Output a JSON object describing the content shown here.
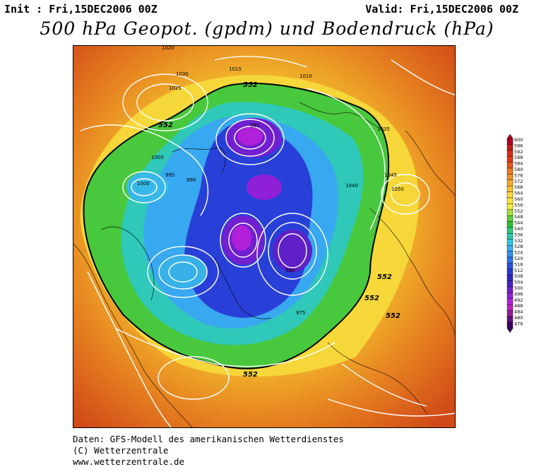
{
  "header": {
    "init": "Init : Fri,15DEC2006 00Z",
    "valid": "Valid: Fri,15DEC2006 00Z",
    "title": "500 hPa Geopot. (gpdm) und Bodendruck (hPa)"
  },
  "footer": {
    "line1": "Daten: GFS-Modell des amerikanischen Wetterdienstes",
    "line2": "(C) Wetterzentrale",
    "line3": "www.wetterzentrale.de"
  },
  "scale": {
    "levels": [
      "600",
      "596",
      "592",
      "588",
      "584",
      "580",
      "576",
      "572",
      "568",
      "564",
      "560",
      "556",
      "552",
      "548",
      "544",
      "540",
      "536",
      "532",
      "528",
      "524",
      "520",
      "516",
      "512",
      "508",
      "504",
      "500",
      "496",
      "492",
      "488",
      "484",
      "480",
      "476"
    ],
    "colors": [
      "#b00020",
      "#c81a1a",
      "#d62a1a",
      "#e03a18",
      "#e65a1a",
      "#ec7a20",
      "#f09024",
      "#f4a82a",
      "#f8c030",
      "#fcd83a",
      "#fce640",
      "#f0ee40",
      "#a8e040",
      "#60d040",
      "#30c038",
      "#30c878",
      "#30c8b0",
      "#30c8e0",
      "#38b0f0",
      "#3890f0",
      "#3070e8",
      "#2850e0",
      "#2838d0",
      "#3028c0",
      "#4820c8",
      "#7020d0",
      "#9020d8",
      "#b020d8",
      "#c020c0",
      "#9020a0",
      "#601080",
      "#400060"
    ]
  },
  "map": {
    "ring_labels": [
      "552",
      "552",
      "552",
      "552",
      "552",
      "552"
    ],
    "isobar_labels": [
      {
        "t": "1020",
        "c": "#fff"
      },
      {
        "t": "1025",
        "c": "#fff"
      },
      {
        "t": "1030",
        "c": "#fff"
      },
      {
        "t": "1015",
        "c": "#fff"
      },
      {
        "t": "1010",
        "c": "#fff"
      },
      {
        "t": "1005",
        "c": "#fff"
      },
      {
        "t": "1000",
        "c": "#fff"
      },
      {
        "t": "995",
        "c": "#fff"
      },
      {
        "t": "990",
        "c": "#fff"
      },
      {
        "t": "985",
        "c": "#fff"
      },
      {
        "t": "980",
        "c": "#fff"
      },
      {
        "t": "975",
        "c": "#fff"
      },
      {
        "t": "1035",
        "c": "#fff"
      },
      {
        "t": "1040",
        "c": "#fff"
      },
      {
        "t": "1045",
        "c": "#fff"
      },
      {
        "t": "1050",
        "c": "#fff"
      }
    ]
  }
}
